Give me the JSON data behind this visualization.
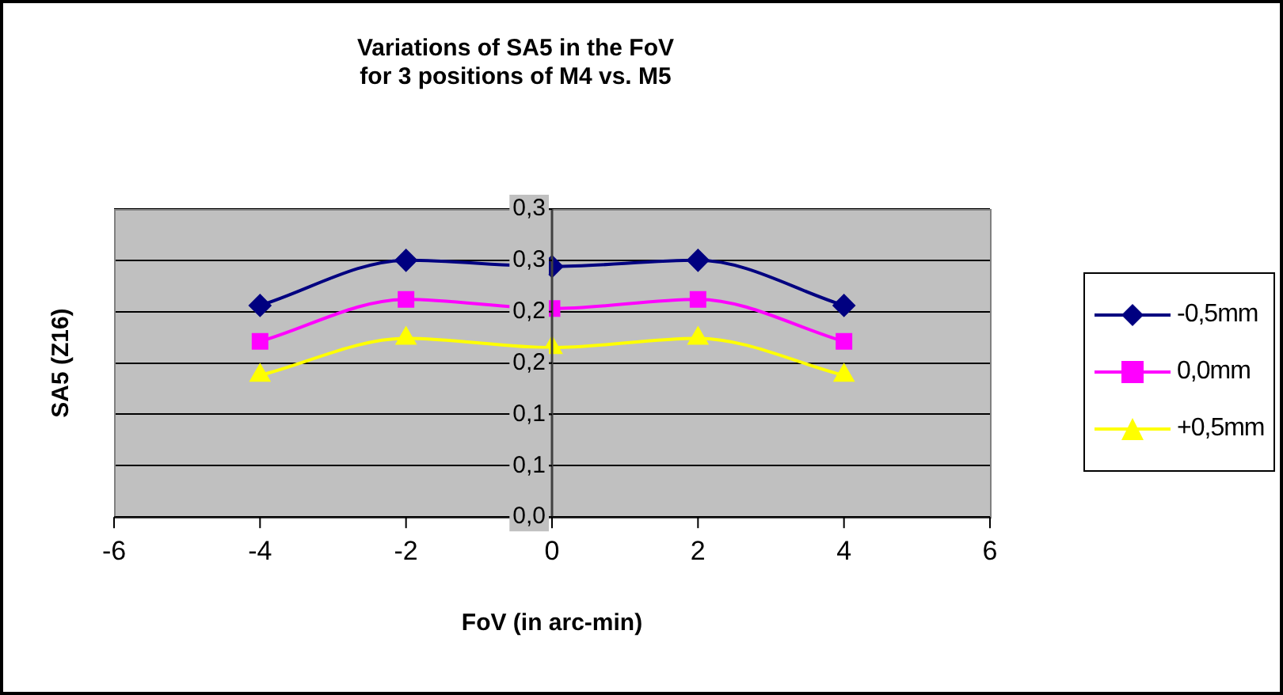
{
  "chart_data": {
    "type": "line",
    "title": "Variations of SA5 in the FoV\nfor 3 positions of M4 vs. M5",
    "xlabel": "FoV (in arc-min)",
    "ylabel": "SA5 (Z16)",
    "x": [
      -4,
      -2,
      0,
      2,
      4
    ],
    "series": [
      {
        "name": "-0,5mm",
        "color": "#000080",
        "marker": "diamond",
        "values": [
          0.206,
          0.25,
          0.244,
          0.25,
          0.206
        ]
      },
      {
        "name": "0,0mm",
        "color": "#ff00ff",
        "marker": "square",
        "values": [
          0.171,
          0.212,
          0.203,
          0.212,
          0.171
        ]
      },
      {
        "name": "+0,5mm",
        "color": "#ffff00",
        "marker": "triangle",
        "values": [
          0.138,
          0.174,
          0.165,
          0.174,
          0.138
        ]
      }
    ],
    "xlim": [
      -6,
      6
    ],
    "xticks": [
      -6,
      -4,
      -2,
      0,
      2,
      4,
      6
    ],
    "ylim": [
      0,
      0.3
    ],
    "yticks": [
      {
        "value": 0,
        "label": "0,0"
      },
      {
        "value": 0.05,
        "label": "0,1"
      },
      {
        "value": 0.1,
        "label": "0,1"
      },
      {
        "value": 0.15,
        "label": "0,2"
      },
      {
        "value": 0.2,
        "label": "0,2"
      },
      {
        "value": 0.25,
        "label": "0,3"
      },
      {
        "value": 0.3,
        "label": "0,3"
      }
    ],
    "grid": "y",
    "legend": "right",
    "line_style": "solid"
  }
}
